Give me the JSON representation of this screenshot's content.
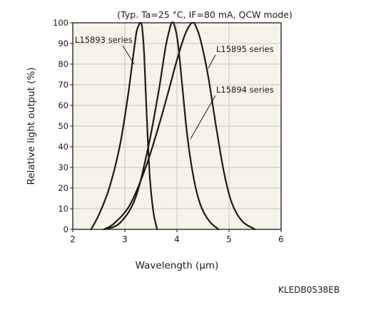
{
  "chart_data": {
    "type": "line",
    "condition_note": "(Typ. Ta=25 °C, IF=80 mA, QCW mode)",
    "xlabel": "Wavelength (μm)",
    "ylabel": "Relative light output (%)",
    "xlim": [
      2,
      6
    ],
    "ylim": [
      0,
      100
    ],
    "xticks": [
      2,
      3,
      4,
      5,
      6
    ],
    "yticks": [
      0,
      10,
      20,
      30,
      40,
      50,
      60,
      70,
      80,
      90,
      100
    ],
    "grid": true,
    "series": [
      {
        "name": "L15893 series",
        "x": [
          2.35,
          2.5,
          2.7,
          2.9,
          3.05,
          3.15,
          3.22,
          3.27,
          3.3,
          3.33,
          3.37,
          3.42,
          3.48,
          3.55,
          3.62
        ],
        "y": [
          0,
          7,
          20,
          40,
          63,
          82,
          95,
          99,
          100,
          98,
          85,
          55,
          25,
          8,
          0
        ]
      },
      {
        "name": "L15894 series",
        "x": [
          2.6,
          2.9,
          3.2,
          3.45,
          3.65,
          3.78,
          3.86,
          3.9,
          3.95,
          4.02,
          4.1,
          4.2,
          4.32,
          4.45,
          4.62,
          4.8
        ],
        "y": [
          0,
          3,
          15,
          40,
          67,
          88,
          97,
          100,
          99,
          90,
          70,
          45,
          25,
          12,
          4,
          0
        ]
      },
      {
        "name": "L15895 series",
        "x": [
          2.6,
          2.8,
          3.1,
          3.4,
          3.65,
          3.85,
          4.0,
          4.15,
          4.25,
          4.3,
          4.35,
          4.45,
          4.6,
          4.75,
          4.9,
          5.05,
          5.25,
          5.5
        ],
        "y": [
          0,
          3,
          12,
          30,
          50,
          68,
          82,
          94,
          99,
          100,
          99,
          92,
          74,
          50,
          28,
          13,
          4,
          0
        ]
      }
    ],
    "labels": [
      {
        "text": "L15893 series",
        "series": 0
      },
      {
        "text": "L15895 series",
        "series": 2
      },
      {
        "text": "L15894 series",
        "series": 1
      }
    ]
  },
  "figure_code": "KLEDB0538EB",
  "colors": {
    "plot_bg": "#f5f3ea",
    "line": "#231815",
    "grid": "#c8c8c8"
  }
}
